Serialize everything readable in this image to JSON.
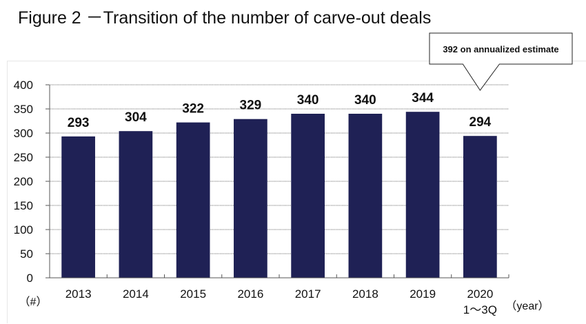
{
  "chart_data": {
    "type": "bar",
    "title": "Figure 2 －Transition of the number of carve-out deals",
    "categories": [
      "2013",
      "2014",
      "2015",
      "2016",
      "2017",
      "2018",
      "2019",
      "2020\n1～3Q"
    ],
    "category_lines": [
      [
        "2013"
      ],
      [
        "2014"
      ],
      [
        "2015"
      ],
      [
        "2016"
      ],
      [
        "2017"
      ],
      [
        "2018"
      ],
      [
        "2019"
      ],
      [
        "2020",
        "1～3Q"
      ]
    ],
    "values": [
      293,
      304,
      322,
      329,
      340,
      340,
      344,
      294
    ],
    "data_labels": [
      "293",
      "304",
      "322",
      "329",
      "340",
      "340",
      "344",
      "294"
    ],
    "xlabel": "（year）",
    "ylabel": "（#）",
    "ylim": [
      0,
      400
    ],
    "yticks": [
      0,
      50,
      100,
      150,
      200,
      250,
      300,
      350,
      400
    ],
    "grid": true,
    "bar_color": "#1f2155",
    "annotations": [
      {
        "text": "392 on annualized estimate",
        "category": "2020\n1～3Q",
        "type": "callout"
      }
    ]
  }
}
